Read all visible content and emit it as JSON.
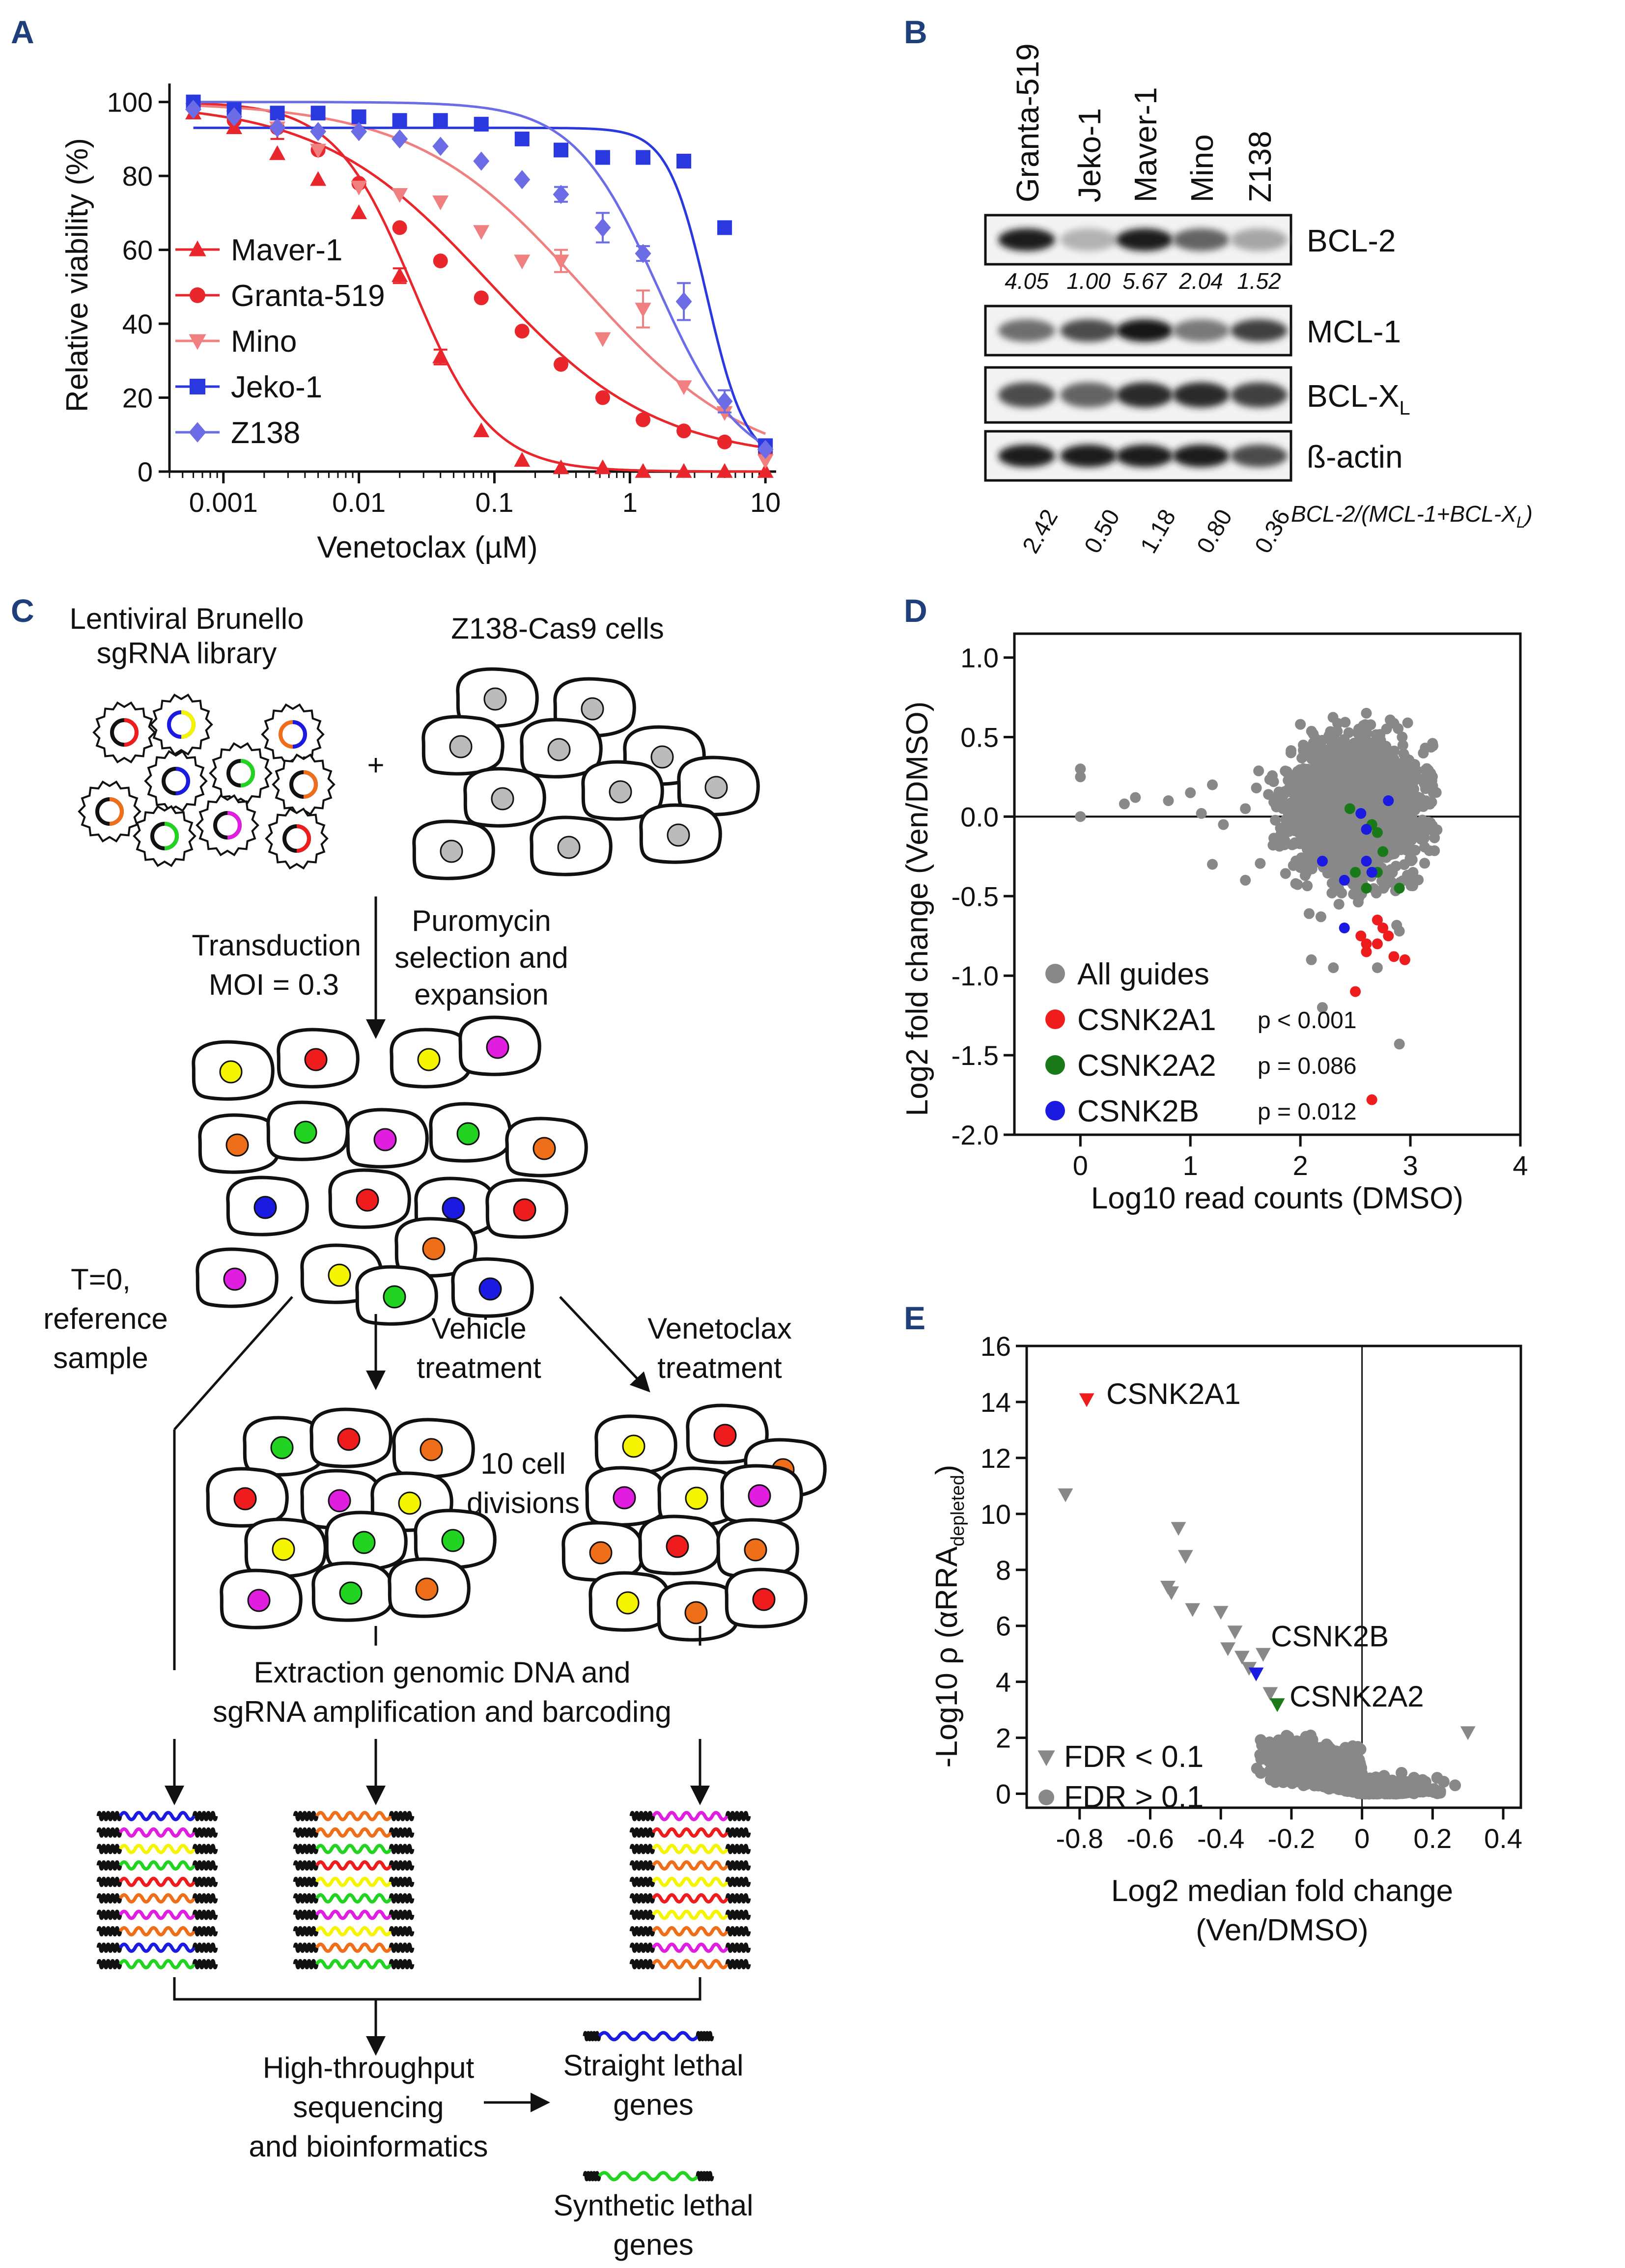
{
  "panels": {
    "A": "A",
    "B": "B",
    "C": "C",
    "D": "D",
    "E": "E"
  },
  "colors": {
    "maver": "#e8262b",
    "granta": "#e8262b",
    "mino": "#f07f80",
    "jeko": "#2a38e0",
    "z138": "#6c6de6",
    "gray": "#888888",
    "red": "#ee1c1c",
    "green": "#1a7a1a",
    "blue": "#1a1ae0"
  },
  "chart_data": [
    {
      "type": "line",
      "panel": "A",
      "title": "",
      "xlabel": "Venetoclax (µM)",
      "ylabel": "Relative viability (%)",
      "xscale": "log",
      "xlim": [
        0.0004,
        12
      ],
      "ylim": [
        0,
        105
      ],
      "xticks": [
        0.001,
        0.01,
        0.1,
        1,
        10
      ],
      "xtick_labels": [
        "0.001",
        "0.01",
        "0.1",
        "1",
        "10"
      ],
      "yticks": [
        0,
        20,
        40,
        60,
        80,
        100
      ],
      "ytick_labels": [
        "0",
        "20",
        "40",
        "60",
        "80",
        "100"
      ],
      "legend_position": "bottom-left",
      "x": [
        0.0006,
        0.0012,
        0.0025,
        0.005,
        0.01,
        0.02,
        0.04,
        0.08,
        0.16,
        0.31,
        0.63,
        1.25,
        2.5,
        5,
        10
      ],
      "series": [
        {
          "name": "Maver-1",
          "marker": "triangle",
          "color": "#e8262b",
          "values": [
            97,
            93,
            86,
            79,
            70,
            53,
            31,
            11,
            3,
            1,
            1,
            0,
            0,
            0,
            0
          ],
          "err": [
            0,
            0,
            0,
            0,
            0,
            2,
            2,
            0,
            0,
            0,
            0,
            0,
            0,
            0,
            0
          ],
          "ec50": 0.025,
          "top": 100,
          "bottom": 0,
          "hill": 1.5
        },
        {
          "name": "Granta-519",
          "marker": "circle",
          "color": "#e8262b",
          "values": [
            100,
            95,
            93,
            87,
            78,
            66,
            57,
            47,
            38,
            29,
            20,
            14,
            11,
            8,
            5
          ],
          "err": [
            0,
            0,
            3,
            0,
            0,
            0,
            0,
            0,
            0,
            0,
            0,
            0,
            0,
            0,
            0
          ],
          "ec50": 0.09,
          "top": 100,
          "bottom": 3,
          "hill": 0.7
        },
        {
          "name": "Mino",
          "marker": "triangle-down",
          "color": "#f07f80",
          "values": [
            98,
            96,
            93,
            87,
            77,
            75,
            73,
            65,
            57,
            57,
            36,
            44,
            23,
            16,
            3
          ],
          "err": [
            0,
            0,
            0,
            0,
            0,
            0,
            0,
            0,
            0,
            3,
            0,
            5,
            0,
            0,
            0
          ],
          "ec50": 0.45,
          "top": 100,
          "bottom": 0,
          "hill": 0.7
        },
        {
          "name": "Jeko-1",
          "marker": "square",
          "color": "#2a38e0",
          "values": [
            100,
            98,
            97,
            97,
            96,
            95,
            95,
            94,
            90,
            87,
            85,
            85,
            84,
            66,
            7
          ],
          "err": [
            0,
            0,
            0,
            0,
            0,
            0,
            0,
            0,
            0,
            0,
            0,
            0,
            0,
            0,
            0
          ],
          "ec50": 3.7,
          "top": 93,
          "bottom": 2,
          "hill": 3.0
        },
        {
          "name": "Z138",
          "marker": "diamond",
          "color": "#6c6de6",
          "values": [
            98,
            96,
            93,
            92,
            92,
            90,
            88,
            84,
            79,
            75,
            66,
            59,
            46,
            19,
            6
          ],
          "err": [
            0,
            0,
            0,
            0,
            0,
            0,
            0,
            0,
            0,
            2,
            4,
            2,
            5,
            3,
            0
          ],
          "ec50": 1.6,
          "top": 100,
          "bottom": 0,
          "hill": 1.4
        }
      ]
    },
    {
      "type": "table",
      "panel": "B",
      "columns": [
        "Granta-519",
        "Jeko-1",
        "Maver-1",
        "Mino",
        "Z138"
      ],
      "blots": [
        {
          "label": "BCL-2",
          "intensities": [
            0.95,
            0.3,
            0.95,
            0.65,
            0.35
          ],
          "values": [
            "4.05",
            "1.00",
            "5.67",
            "2.04",
            "1.52"
          ]
        },
        {
          "label": "MCL-1",
          "intensities": [
            0.6,
            0.75,
            0.98,
            0.55,
            0.8
          ]
        },
        {
          "label": "BCL-X",
          "subscript": "L",
          "intensities": [
            0.75,
            0.65,
            0.9,
            0.9,
            0.8
          ]
        },
        {
          "label": "ß-actin",
          "intensities": [
            0.97,
            0.95,
            0.97,
            0.97,
            0.75
          ]
        }
      ],
      "ratio_label": "BCL-2/(MCL-1+BCL-X",
      "ratio_sub": "L",
      "ratio_close": ")",
      "ratio_values": [
        "2.42",
        "0.50",
        "1.18",
        "0.80",
        "0.36"
      ]
    },
    {
      "type": "scatter",
      "panel": "D",
      "xlabel": "Log10 read counts (DMSO)",
      "ylabel": "Log2 fold change (Ven/DMSO)",
      "xlim": [
        -0.6,
        4.0
      ],
      "ylim": [
        -2.0,
        1.15
      ],
      "xticks": [
        0,
        1,
        2,
        3,
        4
      ],
      "xtick_labels": [
        "0",
        "1",
        "2",
        "3",
        "4"
      ],
      "yticks": [
        1.0,
        0.5,
        0.0,
        -0.5,
        -1.0,
        -1.5,
        -2.0
      ],
      "ytick_labels": [
        "1.0",
        "0.5",
        "0.0",
        "-0.5",
        "-1.0",
        "-1.5",
        "-2.0"
      ],
      "legend_position": "bottom-left",
      "series": [
        {
          "name": "All guides",
          "color": "#888888",
          "pvalue": "",
          "points": [
            [
              0,
              0.3
            ],
            [
              0,
              0.25
            ],
            [
              0,
              0.0
            ],
            [
              0.4,
              0.08
            ],
            [
              0.5,
              0.12
            ],
            [
              0.8,
              0.1
            ],
            [
              1.0,
              0.15
            ],
            [
              1.2,
              0.2
            ],
            [
              1.5,
              0.05
            ],
            [
              1.6,
              0.18
            ],
            [
              2.0,
              0.58
            ],
            [
              2.6,
              0.65
            ],
            [
              3.0,
              0.1
            ],
            [
              2.9,
              -0.72
            ],
            [
              2.7,
              -0.95
            ],
            [
              2.1,
              -0.9
            ],
            [
              1.2,
              -0.3
            ],
            [
              1.5,
              -0.4
            ],
            [
              2.2,
              -1.2
            ],
            [
              2.3,
              -0.95
            ],
            [
              2.9,
              -1.43
            ],
            [
              1.1,
              0.02
            ],
            [
              1.3,
              -0.05
            ]
          ]
        },
        {
          "name": "CSNK2A1",
          "color": "#ee1c1c",
          "pvalue": "p < 0.001",
          "points": [
            [
              2.55,
              -0.75
            ],
            [
              2.6,
              -0.8
            ],
            [
              2.7,
              -0.8
            ],
            [
              2.8,
              -0.75
            ],
            [
              2.85,
              -0.88
            ],
            [
              2.95,
              -0.9
            ],
            [
              2.5,
              -1.1
            ],
            [
              2.65,
              -1.78
            ],
            [
              2.7,
              -0.65
            ],
            [
              2.75,
              -0.7
            ],
            [
              2.6,
              -0.85
            ]
          ]
        },
        {
          "name": "CSNK2A2",
          "color": "#1a7a1a",
          "pvalue": "p = 0.086",
          "points": [
            [
              2.45,
              0.05
            ],
            [
              2.7,
              -0.1
            ],
            [
              2.75,
              -0.22
            ],
            [
              2.7,
              -0.35
            ],
            [
              2.9,
              -0.45
            ],
            [
              2.6,
              -0.45
            ],
            [
              2.5,
              -0.35
            ],
            [
              2.65,
              -0.05
            ]
          ]
        },
        {
          "name": "CSNK2B",
          "color": "#1a1ae0",
          "pvalue": "p = 0.012",
          "points": [
            [
              2.55,
              0.02
            ],
            [
              2.8,
              0.1
            ],
            [
              2.6,
              -0.08
            ],
            [
              2.6,
              -0.28
            ],
            [
              2.2,
              -0.28
            ],
            [
              2.4,
              -0.4
            ],
            [
              2.65,
              -0.35
            ],
            [
              2.4,
              -0.7
            ]
          ]
        }
      ]
    },
    {
      "type": "scatter",
      "panel": "E",
      "xlabel_line1": "Log2 median fold change",
      "xlabel_line2": "(Ven/DMSO)",
      "ylabel": "-Log10 ρ (αRRA",
      "ylabel_sub": "depleted",
      "ylabel_close": ")",
      "xlim": [
        -0.95,
        0.45
      ],
      "ylim": [
        -0.5,
        16
      ],
      "xticks": [
        -0.8,
        -0.6,
        -0.4,
        -0.2,
        0,
        0.2,
        0.4
      ],
      "xtick_labels": [
        "-0.8",
        "-0.6",
        "-0.4",
        "-0.2",
        "0",
        "0.2",
        "0.4"
      ],
      "yticks": [
        0,
        2,
        4,
        6,
        8,
        10,
        12,
        14,
        16
      ],
      "ytick_labels": [
        "0",
        "2",
        "4",
        "6",
        "8",
        "10",
        "12",
        "14",
        "16"
      ],
      "legend_position": "bottom-left",
      "legend": [
        {
          "name": "FDR < 0.1",
          "marker": "triangle-down"
        },
        {
          "name": "FDR > 0.1",
          "marker": "circle"
        }
      ],
      "labeled_points": [
        {
          "name": "CSNK2A1",
          "x": -0.78,
          "y": 14.1,
          "color": "#ee1c1c"
        },
        {
          "name": "CSNK2B",
          "x": -0.3,
          "y": 4.3,
          "color": "#1a1ae0"
        },
        {
          "name": "CSNK2A2",
          "x": -0.24,
          "y": 3.2,
          "color": "#1a7a1a"
        }
      ],
      "fdr_low_points": [
        [
          -0.84,
          10.7
        ],
        [
          -0.52,
          9.5
        ],
        [
          -0.5,
          8.5
        ],
        [
          -0.55,
          7.4
        ],
        [
          -0.54,
          7.2
        ],
        [
          -0.48,
          6.6
        ],
        [
          -0.4,
          6.5
        ],
        [
          -0.36,
          5.8
        ],
        [
          -0.38,
          5.2
        ],
        [
          -0.34,
          4.9
        ],
        [
          -0.28,
          5.0
        ],
        [
          -0.32,
          4.5
        ],
        [
          -0.26,
          3.6
        ],
        [
          0.3,
          2.2
        ]
      ],
      "fdr_high_points": []
    }
  ],
  "schematic": {
    "library_l1": "Lentiviral Brunello",
    "library_l2": "sgRNA library",
    "cells_label": "Z138-Cas9 cells",
    "plus": "+",
    "puro_l1": "Puromycin",
    "puro_l2": "selection and",
    "puro_l3": "expansion",
    "trans_l1": "Transduction",
    "trans_l2": "MOI = 0.3",
    "t0_l1": "T=0,",
    "t0_l2": "reference",
    "t0_l3": "sample",
    "veh_l1": "Vehicle",
    "veh_l2": "treatment",
    "ven_l1": "Venetoclax",
    "ven_l2": "treatment",
    "div_l1": "10 cell",
    "div_l2": "divisions",
    "extract_l1": "Extraction genomic DNA and",
    "extract_l2": "sgRNA amplification and barcoding",
    "hts_l1": "High-throughput",
    "hts_l2": "sequencing",
    "hts_l3": "and bioinformatics",
    "straight_l1": "Straight lethal",
    "straight_l2": "genes",
    "synth_l1": "Synthetic lethal",
    "synth_l2": "genes"
  }
}
